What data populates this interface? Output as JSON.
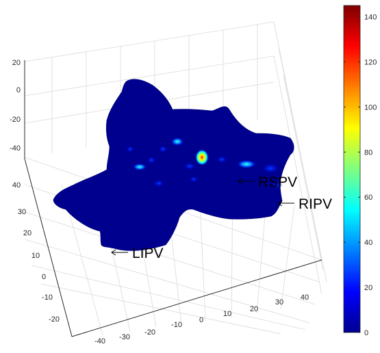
{
  "chart_data": {
    "type": "heatmap",
    "title": "",
    "xlabel": "",
    "ylabel": "",
    "zlabel": "",
    "view": "3d-surface",
    "grid": true,
    "x_ticks": [
      "-40",
      "-30",
      "-20",
      "-10",
      "0",
      "10",
      "20",
      "30",
      "40"
    ],
    "y_ticks": [
      "-20",
      "-10",
      "0",
      "10",
      "20",
      "30",
      "40"
    ],
    "z_ticks": [
      "20",
      "0",
      "-20",
      "-40"
    ],
    "colorbar": {
      "colormap": "jet",
      "range": [
        0,
        145
      ],
      "ticks": [
        "140",
        "120",
        "100",
        "80",
        "60",
        "40",
        "20",
        "0"
      ],
      "location": "right"
    },
    "annotations": [
      {
        "text": "RSPV",
        "arrow": "left"
      },
      {
        "text": "RIPV",
        "arrow": "left"
      },
      {
        "text": "LIPV",
        "arrow": "left"
      }
    ],
    "surface": {
      "base_value": 0,
      "peak_value": 145,
      "base_color": "#00008f"
    }
  }
}
